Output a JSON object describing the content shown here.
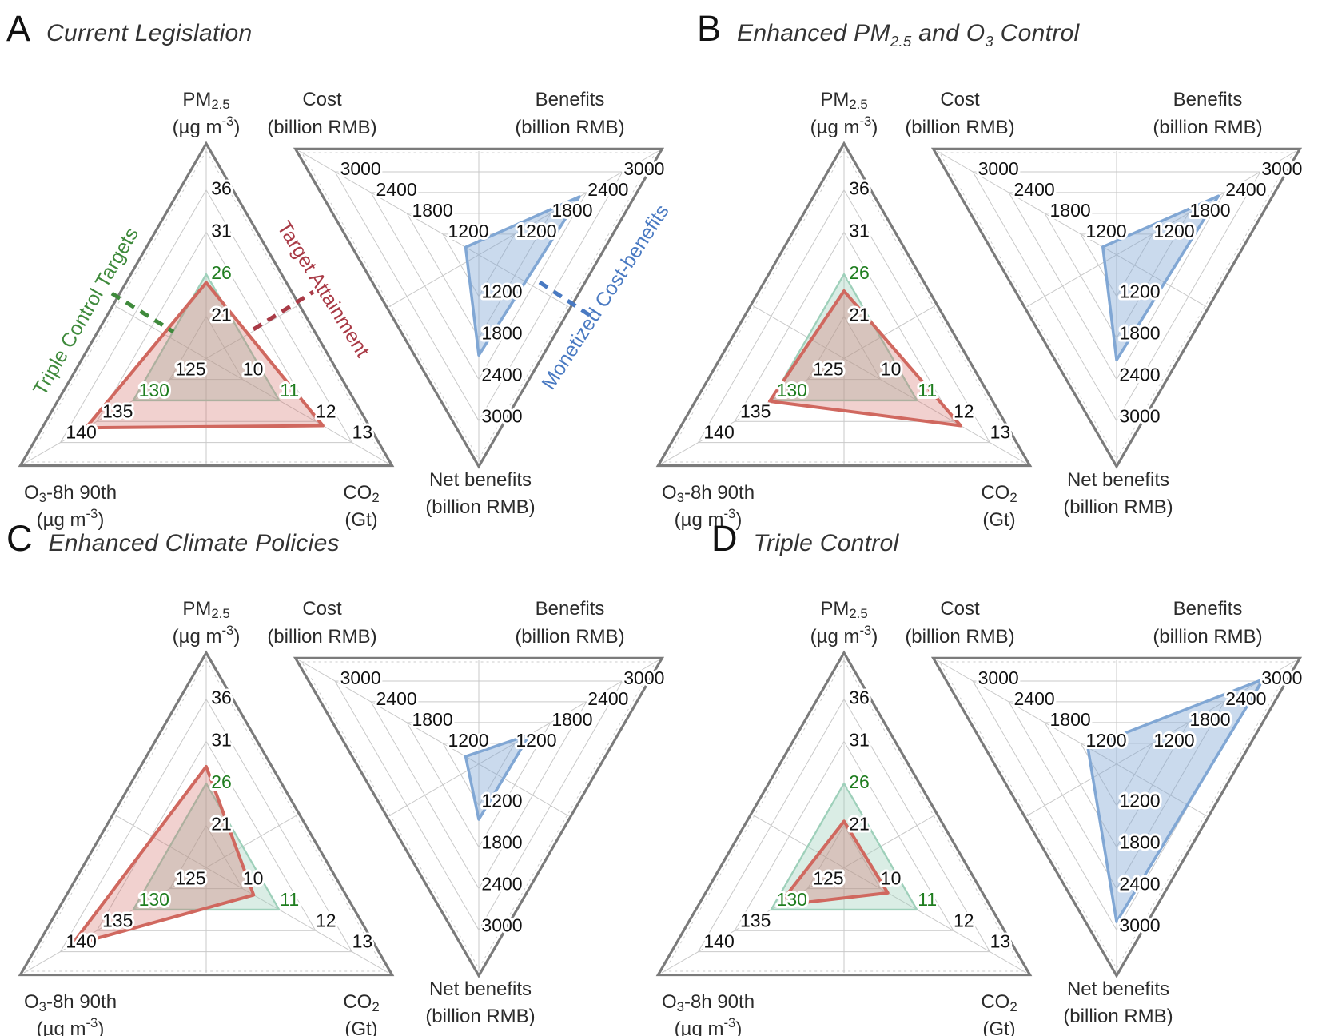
{
  "chart_data": {
    "type": "radar",
    "variant": "paired-triangular-radar",
    "grid": {
      "ring": "#c9c9c9",
      "dashed": "#cccccc",
      "border": "#7b7b7b",
      "tick_text": "#111111",
      "target_tick_text": "#1f7d1f"
    },
    "series_legend": [
      {
        "id": "targets",
        "label": "Triple Control Targets",
        "line": "#9ed0ba",
        "fill": "rgba(158,208,186,0.38)",
        "text": "#3f8a3c"
      },
      {
        "id": "attainment",
        "label": "Target Attainment",
        "line": "#d0685f",
        "fill": "rgba(208,104,95,0.30)",
        "text": "#a93a46"
      },
      {
        "id": "cost_benefit",
        "label": "Monetized Cost-benefits",
        "line": "#81a7d4",
        "fill": "rgba(129,167,212,0.42)",
        "text": "#4a7ac2"
      }
    ],
    "pollutant_axes": [
      {
        "id": "pm25",
        "label": [
          [
            "PM"
          ],
          [
            "2.5",
            "sub"
          ]
        ],
        "unit": [
          [
            "(µg m"
          ],
          [
            "-3",
            "sup"
          ],
          [
            ")"
          ]
        ],
        "min": 16,
        "max": 41,
        "ticks": [
          {
            "v": 36
          },
          {
            "v": 31
          },
          {
            "v": 26,
            "target": true
          },
          {
            "v": 21
          }
        ]
      },
      {
        "id": "o3",
        "label": [
          [
            "O"
          ],
          [
            "3",
            "sub"
          ],
          [
            "-8h 90th"
          ]
        ],
        "unit": [
          [
            "(µg m"
          ],
          [
            "-3",
            "sup"
          ],
          [
            ")"
          ]
        ],
        "min": 120,
        "max": 145,
        "ticks": [
          {
            "v": 140
          },
          {
            "v": 135
          },
          {
            "v": 130,
            "target": true
          },
          {
            "v": 125
          }
        ]
      },
      {
        "id": "co2",
        "label": [
          [
            "CO"
          ],
          [
            "2",
            "sub"
          ]
        ],
        "unit": [
          [
            "(Gt)"
          ]
        ],
        "min": 9,
        "max": 14,
        "ticks": [
          {
            "v": 13
          },
          {
            "v": 12
          },
          {
            "v": 11,
            "target": true
          },
          {
            "v": 10
          }
        ]
      }
    ],
    "money_axes": [
      {
        "id": "cost",
        "label": [
          [
            "Cost"
          ]
        ],
        "unit": [
          [
            "(billion RMB)"
          ]
        ],
        "min": 600,
        "max": 3600,
        "ticks": [
          {
            "v": 3000
          },
          {
            "v": 2400
          },
          {
            "v": 1800
          },
          {
            "v": 1200
          }
        ]
      },
      {
        "id": "benefits",
        "label": [
          [
            "Benefits"
          ]
        ],
        "unit": [
          [
            "(billion RMB)"
          ]
        ],
        "min": 600,
        "max": 3600,
        "ticks": [
          {
            "v": 3000
          },
          {
            "v": 2400
          },
          {
            "v": 1800
          },
          {
            "v": 1200
          }
        ]
      },
      {
        "id": "net",
        "label": [
          [
            "Net benefits"
          ]
        ],
        "unit": [
          [
            "(billion RMB)"
          ]
        ],
        "min": 600,
        "max": 3600,
        "ticks": [
          {
            "v": 1200
          },
          {
            "v": 1800
          },
          {
            "v": 2400
          },
          {
            "v": 3000
          }
        ]
      }
    ],
    "targets": {
      "pm25": 26,
      "o3": 130,
      "co2": 11
    },
    "panels": [
      {
        "letter": "A",
        "title_segments": [
          [
            "Current Legislation"
          ]
        ],
        "attainment": {
          "pm25": 25,
          "o3": 136.5,
          "co2": 12.2
        },
        "cost_benefit": {
          "cost": 820,
          "benefits": 2280,
          "net": 2050
        }
      },
      {
        "letter": "B",
        "title_segments": [
          [
            "Enhanced PM"
          ],
          [
            "2.5",
            "sub"
          ],
          [
            " and O"
          ],
          [
            "3",
            "sub"
          ],
          [
            " Control"
          ]
        ],
        "attainment": {
          "pm25": 24,
          "o3": 130.2,
          "co2": 12.2
        },
        "cost_benefit": {
          "cost": 830,
          "benefits": 2300,
          "net": 2120
        }
      },
      {
        "letter": "C",
        "title_segments": [
          [
            "Enhanced Climate Policies"
          ]
        ],
        "attainment": {
          "pm25": 28,
          "o3": 138.5,
          "co2": 10.3
        },
        "cost_benefit": {
          "cost": 820,
          "benefits": 1450,
          "net": 1400
        }
      },
      {
        "letter": "D",
        "title_segments": [
          [
            "Triple Control"
          ]
        ],
        "attainment": {
          "pm25": 21.5,
          "o3": 129,
          "co2": 10.2
        },
        "cost_benefit": {
          "cost": 1080,
          "benefits": 3050,
          "net": 2880
        }
      }
    ]
  }
}
